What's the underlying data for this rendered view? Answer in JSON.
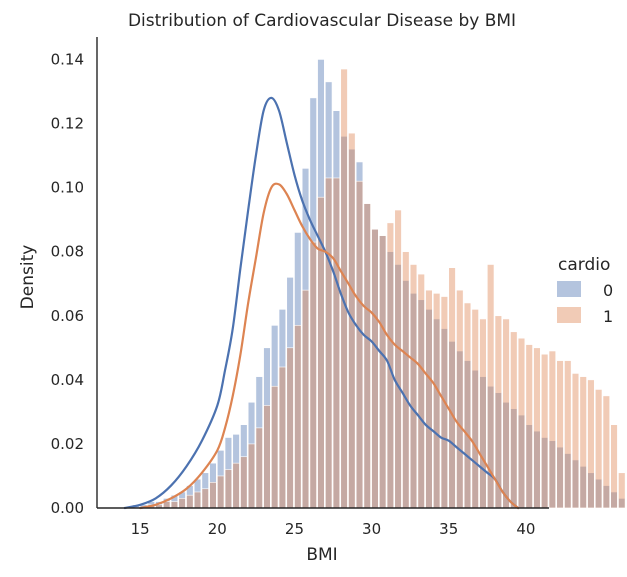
{
  "chart_data": {
    "type": "histogram+kde",
    "title": "Distribution of Cardiovascular Disease by BMI",
    "xlabel": "BMI",
    "ylabel": "Density",
    "xlim": [
      12.2,
      41.5
    ],
    "ylim": [
      0,
      0.147
    ],
    "xticks": [
      15,
      20,
      25,
      30,
      35,
      40
    ],
    "yticks": [
      0.0,
      0.02,
      0.04,
      0.06,
      0.08,
      0.1,
      0.12,
      0.14
    ],
    "ytick_labels": [
      "0.00",
      "0.02",
      "0.04",
      "0.06",
      "0.08",
      "0.10",
      "0.12",
      "0.14"
    ],
    "grid": false,
    "legend": {
      "title": "cardio",
      "placement": "right"
    },
    "bin_edges_start": 14.0,
    "bin_width": 0.5,
    "series": [
      {
        "name": "0",
        "color": "#4c72b0",
        "hist": [
          0.0,
          0.001,
          0.001,
          0.002,
          0.002,
          0.003,
          0.004,
          0.005,
          0.007,
          0.009,
          0.011,
          0.014,
          0.018,
          0.022,
          0.023,
          0.026,
          0.033,
          0.041,
          0.05,
          0.057,
          0.062,
          0.072,
          0.086,
          0.106,
          0.128,
          0.14,
          0.133,
          0.124,
          0.116,
          0.112,
          0.108,
          0.095,
          0.087,
          0.085,
          0.08,
          0.076,
          0.071,
          0.067,
          0.065,
          0.062,
          0.059,
          0.056,
          0.052,
          0.049,
          0.046,
          0.043,
          0.041,
          0.038,
          0.036,
          0.033,
          0.031,
          0.029,
          0.026,
          0.024,
          0.022,
          0.021,
          0.019,
          0.017,
          0.015,
          0.013,
          0.011,
          0.009,
          0.007,
          0.005,
          0.003
        ],
        "kde_x": [
          14,
          15,
          16,
          17,
          18,
          19,
          20,
          20.5,
          21,
          21.5,
          22,
          22.5,
          23,
          23.5,
          24,
          24.5,
          25,
          25.5,
          26,
          26.5,
          27,
          27.5,
          28,
          28.5,
          29,
          29.5,
          30,
          30.5,
          31,
          31.5,
          32,
          32.5,
          33,
          33.5,
          34,
          34.5,
          35,
          35.5,
          36,
          36.5,
          37,
          37.5,
          38,
          38.5,
          39,
          39.5
        ],
        "kde_y": [
          0.0,
          0.001,
          0.003,
          0.007,
          0.013,
          0.021,
          0.032,
          0.043,
          0.056,
          0.075,
          0.093,
          0.11,
          0.124,
          0.128,
          0.124,
          0.114,
          0.104,
          0.096,
          0.09,
          0.085,
          0.08,
          0.074,
          0.067,
          0.061,
          0.057,
          0.054,
          0.052,
          0.049,
          0.046,
          0.04,
          0.036,
          0.032,
          0.029,
          0.026,
          0.024,
          0.022,
          0.021,
          0.019,
          0.017,
          0.015,
          0.013,
          0.011,
          0.009,
          0.005,
          0.002,
          0.0
        ]
      },
      {
        "name": "1",
        "color": "#dd8452",
        "hist": [
          0.0,
          0.0,
          0.0,
          0.001,
          0.001,
          0.002,
          0.002,
          0.003,
          0.004,
          0.005,
          0.006,
          0.008,
          0.01,
          0.012,
          0.014,
          0.016,
          0.02,
          0.025,
          0.032,
          0.038,
          0.044,
          0.05,
          0.057,
          0.068,
          0.083,
          0.097,
          0.103,
          0.103,
          0.137,
          0.117,
          0.102,
          0.095,
          0.087,
          0.085,
          0.089,
          0.093,
          0.08,
          0.076,
          0.073,
          0.068,
          0.067,
          0.066,
          0.075,
          0.068,
          0.064,
          0.062,
          0.059,
          0.076,
          0.06,
          0.059,
          0.055,
          0.053,
          0.051,
          0.05,
          0.048,
          0.049,
          0.046,
          0.046,
          0.042,
          0.041,
          0.04,
          0.037,
          0.035,
          0.026,
          0.011
        ],
        "kde_x": [
          15,
          16,
          17,
          18,
          19,
          20,
          20.5,
          21,
          21.5,
          22,
          22.5,
          23,
          23.5,
          24,
          24.5,
          25,
          25.5,
          26,
          26.5,
          27,
          27.5,
          28,
          28.5,
          29,
          29.5,
          30,
          30.5,
          31,
          31.5,
          32,
          32.5,
          33,
          33.5,
          34,
          34.5,
          35,
          35.5,
          36,
          36.5,
          37,
          37.5,
          38,
          38.5,
          39,
          39.5
        ],
        "kde_y": [
          0.0,
          0.001,
          0.003,
          0.006,
          0.011,
          0.018,
          0.025,
          0.035,
          0.048,
          0.064,
          0.078,
          0.092,
          0.1,
          0.101,
          0.098,
          0.093,
          0.088,
          0.084,
          0.081,
          0.08,
          0.078,
          0.074,
          0.07,
          0.066,
          0.063,
          0.061,
          0.058,
          0.054,
          0.051,
          0.049,
          0.047,
          0.045,
          0.042,
          0.039,
          0.035,
          0.031,
          0.027,
          0.024,
          0.021,
          0.017,
          0.013,
          0.009,
          0.005,
          0.002,
          0.0
        ]
      }
    ]
  }
}
